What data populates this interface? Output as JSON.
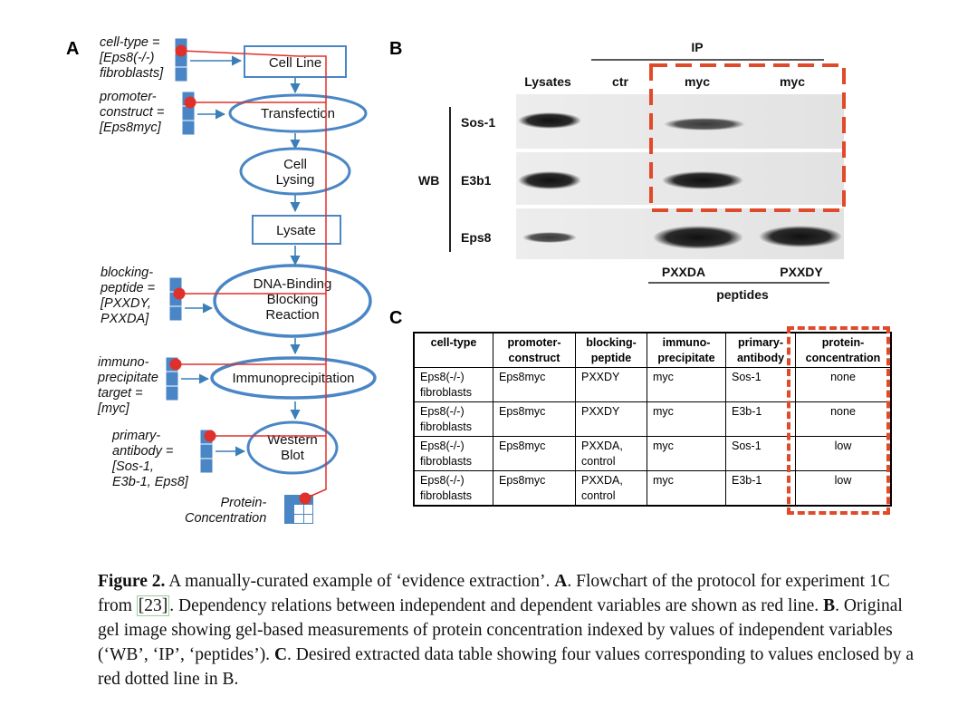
{
  "panel_labels": {
    "a": "A",
    "b": "B",
    "c": "C"
  },
  "panelA": {
    "nodes": [
      "Cell Line",
      "Transfection",
      "Cell\nLysing",
      "Lysate",
      "DNA-Binding\nBlocking\nReaction",
      "Immunoprecipitation",
      "Western\nBlot"
    ],
    "variables": [
      "cell-type =\n[Eps8(-/-)\nfibroblasts]",
      "promoter-\nconstruct =\n[Eps8myc]",
      "blocking-\npeptide =\n[PXXDY,\nPXXDA]",
      "immuno-\nprecipitate\ntarget =\n[myc]",
      "primary-\nantibody =\n[Sos-1,\nE3b-1, Eps8]",
      "Protein-\nConcentration"
    ],
    "colors": {
      "box": "#4a86c5",
      "line": "#e0302a",
      "arrow": "#3a7fb8"
    }
  },
  "panelB": {
    "ip_label": "IP",
    "columns": [
      "Lysates",
      "ctr",
      "myc",
      "myc"
    ],
    "rows": [
      "Sos-1",
      "E3b1",
      "Eps8"
    ],
    "wb_label": "WB",
    "peptides": [
      "PXXDA",
      "PXXDY"
    ],
    "peptides_label": "peptides",
    "highlight_color": "#e04a2a"
  },
  "panelC": {
    "headers": [
      "cell-type",
      "promoter-\nconstruct",
      "blocking-\npeptide",
      "immuno-\nprecipitate",
      "primary-\nantibody",
      "protein-\nconcentration"
    ],
    "rows": [
      [
        "Eps8(-/-)\nfibroblasts",
        "Eps8myc",
        "PXXDY",
        "myc",
        "Sos-1",
        "none"
      ],
      [
        "Eps8(-/-)\nfibroblasts",
        "Eps8myc",
        "PXXDY",
        "myc",
        "E3b-1",
        "none"
      ],
      [
        "Eps8(-/-)\nfibroblasts",
        "Eps8myc",
        "PXXDA,\ncontrol",
        "myc",
        "Sos-1",
        "low"
      ],
      [
        "Eps8(-/-)\nfibroblasts",
        "Eps8myc",
        "PXXDA,\ncontrol",
        "myc",
        "E3b-1",
        "low"
      ]
    ]
  },
  "caption": {
    "figure_label": "Figure 2.",
    "part1": " A manually-curated example of ‘evidence extraction’. ",
    "a": "A",
    "part2": ". Flowchart of the protocol for experiment 1C from ",
    "ref": "[23]",
    "part3": ". Dependency relations between independent and dependent variables are shown as red line. ",
    "b": "B",
    "part4": ". Original gel image showing gel-based measurements of protein concentration indexed by values of independent variables (‘WB’, ‘IP’, ‘peptides’). ",
    "c": "C",
    "part5": ". Desired extracted data table showing four values corresponding to values enclosed by a red dotted line in B."
  }
}
